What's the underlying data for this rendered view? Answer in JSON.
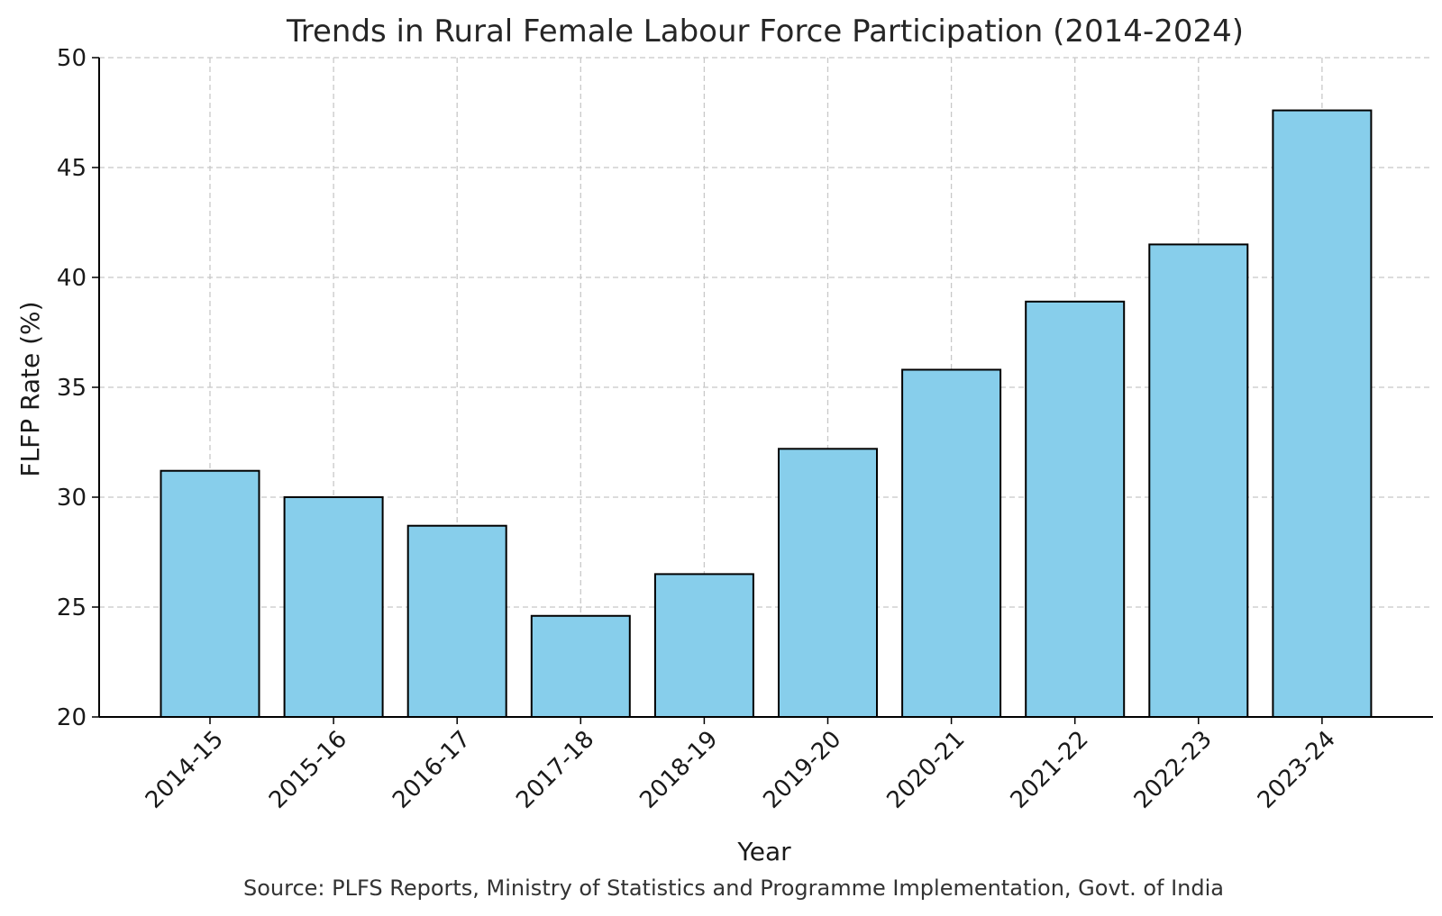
{
  "chart_data": {
    "type": "bar",
    "title": "Trends in Rural Female Labour Force Participation (2014-2024)",
    "xlabel": "Year",
    "ylabel": "FLFP Rate (%)",
    "categories": [
      "2014-15",
      "2015-16",
      "2016-17",
      "2017-18",
      "2018-19",
      "2019-20",
      "2020-21",
      "2021-22",
      "2022-23",
      "2023-24"
    ],
    "values": [
      31.2,
      30.0,
      28.7,
      24.6,
      26.5,
      32.2,
      35.8,
      38.9,
      41.5,
      47.6
    ],
    "ylim": [
      20,
      50
    ],
    "yticks": [
      20,
      25,
      30,
      35,
      40,
      45,
      50
    ],
    "grid": true,
    "bar_color": "#87ceeb",
    "edge_color": "#000000"
  },
  "source_note": "Source: PLFS Reports, Ministry of Statistics and Programme Implementation, Govt. of India"
}
